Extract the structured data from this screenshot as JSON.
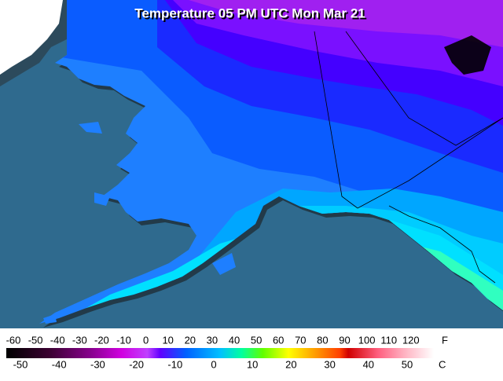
{
  "header": {
    "title": "Temperature 05 PM UTC Mon Mar 21"
  },
  "legend": {
    "fahrenheit": {
      "unit": "F",
      "labels": [
        -60,
        -50,
        -40,
        -30,
        -20,
        -10,
        0,
        10,
        20,
        30,
        40,
        50,
        60,
        70,
        80,
        90,
        100,
        110,
        120
      ]
    },
    "celsius": {
      "unit": "C",
      "labels": [
        -50,
        -40,
        -30,
        -20,
        -10,
        0,
        10,
        20,
        30,
        40,
        50
      ]
    }
  }
}
